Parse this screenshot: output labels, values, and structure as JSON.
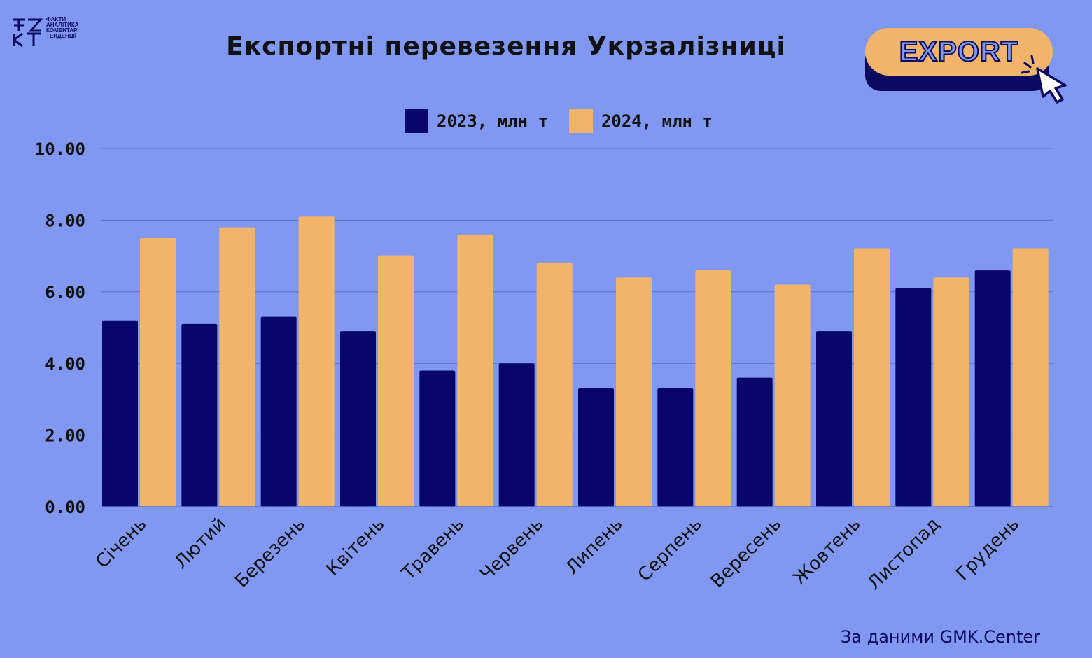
{
  "logo": {
    "mark": "ФА КТ",
    "lines": [
      "ФАКТИ",
      "АНАЛІТИКА",
      "КОМЕНТАРІ",
      "ТЕНДЕНЦІЇ"
    ]
  },
  "header": {
    "title": "Експортні перевезення Укрзалізниці",
    "export_label": "EXPORT"
  },
  "colors": {
    "background": "#8098F1",
    "series_2023": "#08066A",
    "series_2024": "#F2B46A",
    "gridline": "#5E6FD0",
    "text": "#111111"
  },
  "chart_data": {
    "type": "bar",
    "title": "Експортні перевезення Укрзалізниці",
    "categories": [
      "Січень",
      "Лютий",
      "Березень",
      "Квітень",
      "Травень",
      "Червень",
      "Липень",
      "Серпень",
      "Вересень",
      "Жовтень",
      "Листопад",
      "Грудень"
    ],
    "series": [
      {
        "name": "2023, млн т",
        "values": [
          5.2,
          5.1,
          5.3,
          4.9,
          3.8,
          4.0,
          3.3,
          3.3,
          3.6,
          4.9,
          6.1,
          6.6
        ]
      },
      {
        "name": "2024, млн т",
        "values": [
          7.5,
          7.8,
          8.1,
          7.0,
          7.6,
          6.8,
          6.4,
          6.6,
          6.2,
          7.2,
          6.4,
          7.2
        ]
      }
    ],
    "ylim": [
      0,
      10
    ],
    "yticks": [
      "0.00",
      "2.00",
      "4.00",
      "6.00",
      "8.00",
      "10.00"
    ],
    "grid": true,
    "legend": "top-center"
  },
  "source": "За даними GMK.Center"
}
